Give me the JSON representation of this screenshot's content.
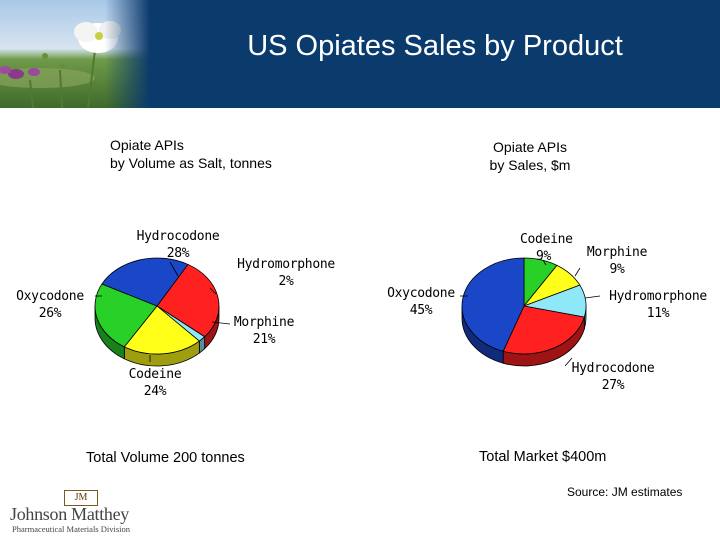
{
  "slide": {
    "title": "US Opiates Sales by Product",
    "source": "Source: JM estimates",
    "logo_text": "Johnson Matthey",
    "logo_sub": "Pharmaceutical Materials Division",
    "logo_mark": "JM"
  },
  "colors": {
    "header_bg": "#0b3a6c",
    "Hydrocodone": "#ff2020",
    "Hydromorphone": "#8ee8f8",
    "Morphine": "#ffff1a",
    "Codeine": "#28d028",
    "Oxycodone": "#1a46c8"
  },
  "chart_data": [
    {
      "type": "pie",
      "title": "Opiate APIs by Volume as Salt, tonnes",
      "title_lines": [
        "Opiate APIs",
        "by Volume as Salt, tonnes"
      ],
      "categories": [
        "Hydrocodone",
        "Hydromorphone",
        "Morphine",
        "Codeine",
        "Oxycodone"
      ],
      "values": [
        28,
        2,
        21,
        24,
        26
      ],
      "value_labels": [
        "28%",
        "2%",
        "21%",
        "24%",
        "26%"
      ],
      "total_note": "Total Volume 200 tonnes"
    },
    {
      "type": "pie",
      "title": "Opiate APIs by Sales, $m",
      "title_lines": [
        "Opiate APIs",
        "by Sales, $m"
      ],
      "categories": [
        "Codeine",
        "Morphine",
        "Hydromorphone",
        "Hydrocodone",
        "Oxycodone"
      ],
      "values": [
        9,
        9,
        11,
        27,
        45
      ],
      "value_labels": [
        "9%",
        "9%",
        "11%",
        "27%",
        "45%"
      ],
      "total_note": "Total Market $400m"
    }
  ]
}
